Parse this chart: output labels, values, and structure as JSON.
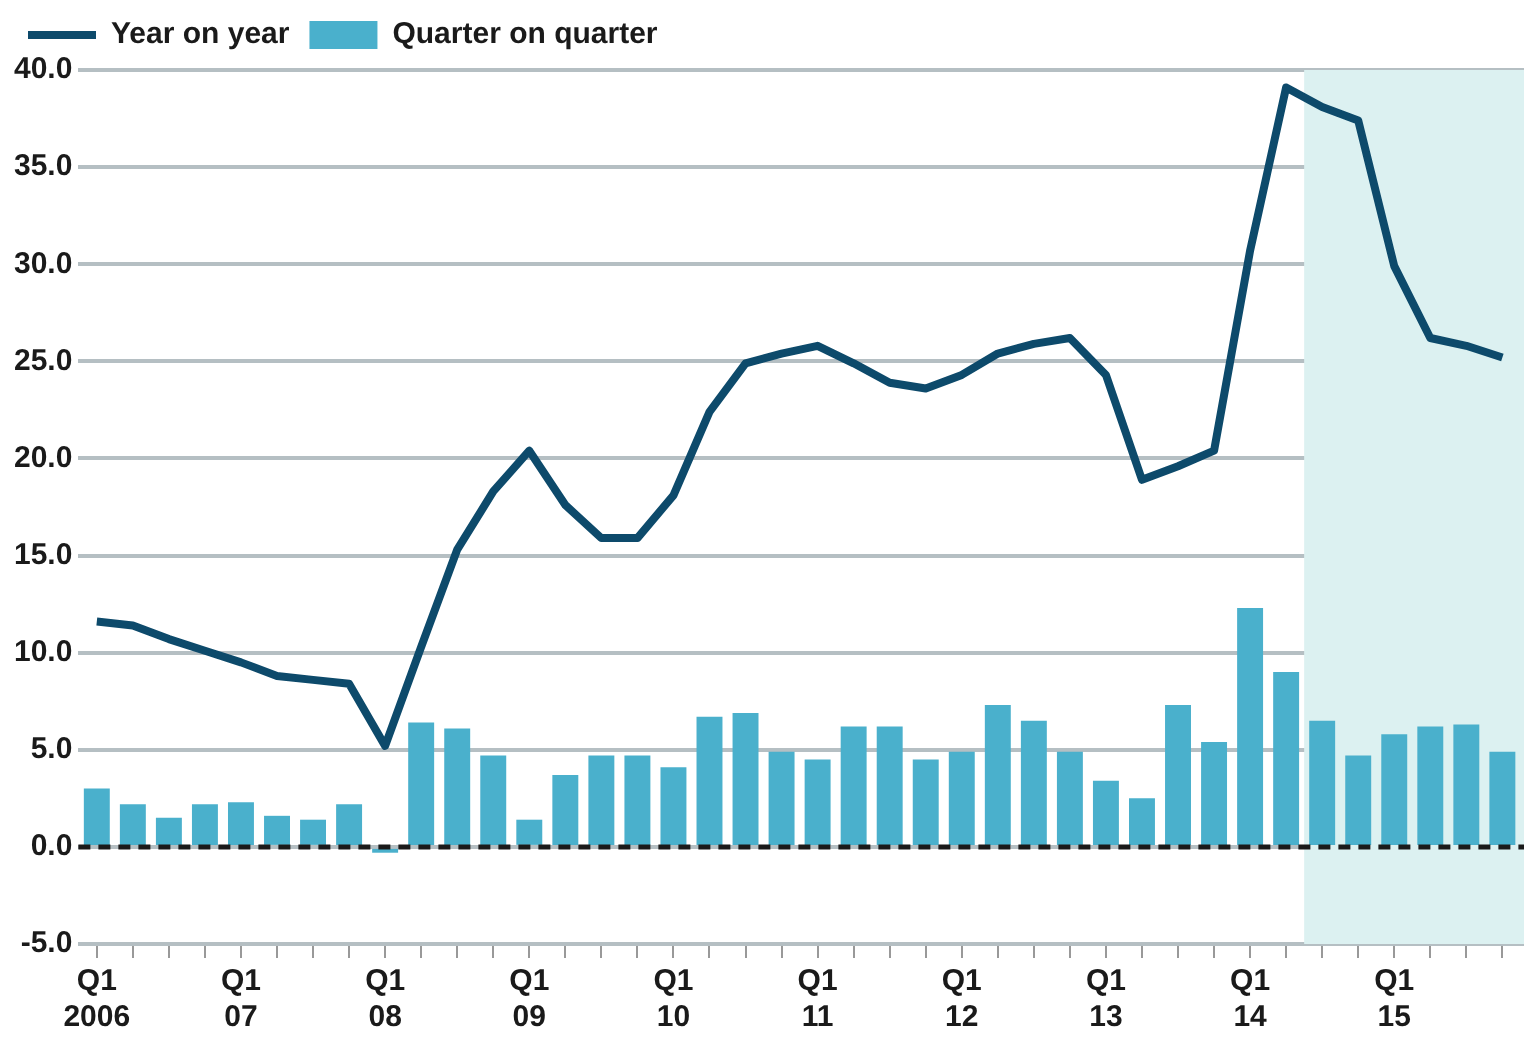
{
  "chart_data": {
    "type": "bar",
    "x": [
      "2006-01",
      "2006-04",
      "2006-07",
      "2006-10",
      "2007-01",
      "2007-04",
      "2007-07",
      "2007-10",
      "2008-01",
      "2008-04",
      "2008-07",
      "2008-10",
      "2009-01",
      "2009-04",
      "2009-07",
      "2009-10",
      "2010-01",
      "2010-04",
      "2010-07",
      "2010-10",
      "2011-01",
      "2011-04",
      "2011-07",
      "2011-10",
      "2012-01",
      "2012-04",
      "2012-07",
      "2012-10",
      "2013-01",
      "2013-04",
      "2013-07",
      "2013-10",
      "2014-01",
      "2014-04",
      "2014-07",
      "2014-10",
      "2015-01",
      "2015-04",
      "2015-07",
      "2015-10"
    ],
    "series": [
      {
        "name": "Year on year",
        "type": "line",
        "color": "#0d4a6b",
        "values": [
          11.6,
          11.4,
          10.7,
          10.1,
          9.5,
          8.8,
          8.6,
          8.4,
          5.2,
          10.3,
          15.3,
          18.3,
          20.4,
          17.6,
          15.9,
          15.9,
          18.1,
          22.4,
          24.9,
          25.4,
          25.8,
          24.9,
          23.9,
          23.6,
          24.3,
          25.4,
          25.9,
          26.2,
          24.3,
          18.9,
          19.6,
          20.4,
          30.7,
          39.1,
          38.1,
          37.4,
          29.9,
          26.2,
          25.8,
          25.2
        ]
      },
      {
        "name": "Quarter on quarter",
        "color": "#4ab0cc",
        "values": [
          3.0,
          2.2,
          1.5,
          2.2,
          2.3,
          1.6,
          1.4,
          2.2,
          -0.3,
          6.4,
          6.1,
          4.7,
          1.4,
          3.7,
          4.7,
          4.7,
          4.1,
          6.7,
          6.9,
          4.9,
          4.5,
          6.2,
          6.2,
          4.5,
          4.9,
          7.3,
          6.5,
          4.9,
          3.4,
          2.5,
          7.3,
          5.4,
          12.3,
          9.0,
          6.5,
          4.7,
          5.8,
          6.2,
          6.3,
          4.9
        ]
      }
    ],
    "xlim": [
      "2005-11-15",
      "2015-11-25"
    ],
    "xticks": [
      {
        "value": "2006-01",
        "label": "Q1\n2006"
      },
      {
        "value": "2006-04",
        "label": null
      },
      {
        "value": "2006-07",
        "label": null
      },
      {
        "value": "2006-10",
        "label": null
      },
      {
        "value": "2007-01",
        "label": "Q1\n07"
      },
      {
        "value": "2007-04",
        "label": null
      },
      {
        "value": "2007-07",
        "label": null
      },
      {
        "value": "2007-10",
        "label": null
      },
      {
        "value": "2008-01",
        "label": "Q1\n08"
      },
      {
        "value": "2008-04",
        "label": null
      },
      {
        "value": "2008-07",
        "label": null
      },
      {
        "value": "2008-10",
        "label": null
      },
      {
        "value": "2009-01",
        "label": "Q1\n09"
      },
      {
        "value": "2009-04",
        "label": null
      },
      {
        "value": "2009-07",
        "label": null
      },
      {
        "value": "2009-10",
        "label": null
      },
      {
        "value": "2010-01",
        "label": "Q1\n10"
      },
      {
        "value": "2010-04",
        "label": null
      },
      {
        "value": "2010-07",
        "label": null
      },
      {
        "value": "2010-10",
        "label": null
      },
      {
        "value": "2011-01",
        "label": "Q1\n11"
      },
      {
        "value": "2011-04",
        "label": null
      },
      {
        "value": "2011-07",
        "label": null
      },
      {
        "value": "2011-10",
        "label": null
      },
      {
        "value": "2012-01",
        "label": "Q1\n12"
      },
      {
        "value": "2012-04",
        "label": null
      },
      {
        "value": "2012-07",
        "label": null
      },
      {
        "value": "2012-10",
        "label": null
      },
      {
        "value": "2013-01",
        "label": "Q1\n13"
      },
      {
        "value": "2013-04",
        "label": null
      },
      {
        "value": "2013-07",
        "label": null
      },
      {
        "value": "2013-10",
        "label": null
      },
      {
        "value": "2014-01",
        "label": "Q1\n14"
      },
      {
        "value": "2014-04",
        "label": null
      },
      {
        "value": "2014-07",
        "label": null
      },
      {
        "value": "2014-10",
        "label": null
      },
      {
        "value": "2015-01",
        "label": "Q1\n15"
      },
      {
        "value": "2015-04",
        "label": null
      },
      {
        "value": "2015-07",
        "label": null
      },
      {
        "value": "2015-10",
        "label": null
      }
    ],
    "ylim": [
      -5,
      40
    ],
    "yticks": [
      {
        "value": -5,
        "label": "-5.0"
      },
      {
        "value": 0,
        "label": "0.0"
      },
      {
        "value": 5,
        "label": "5.0"
      },
      {
        "value": 10,
        "label": "10.0"
      },
      {
        "value": 15,
        "label": "15.0"
      },
      {
        "value": 20,
        "label": "20.0"
      },
      {
        "value": 25,
        "label": "25.0"
      },
      {
        "value": 30,
        "label": "30.0"
      },
      {
        "value": 35,
        "label": "35.0"
      },
      {
        "value": 40,
        "label": "40.0"
      }
    ],
    "grid": "y",
    "legend": "top left",
    "marker": "none",
    "line_style": "solid",
    "ref_lines": [
      {
        "axis": "y",
        "value": 0,
        "color": "#1a1a1a",
        "line_style": "dashed"
      }
    ],
    "bands": [
      {
        "axis": "x",
        "from": "2014-05-16",
        "to": "2015-11-25",
        "color": "#dcf1f1"
      }
    ]
  }
}
